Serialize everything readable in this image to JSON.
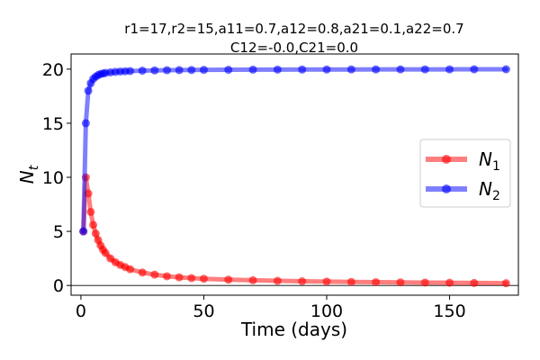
{
  "chart_data": {
    "type": "line",
    "title_line1": "r1=17,r2=15,a11=0.7,a12=0.8,a21=0.1,a22=0.7",
    "title_line2": "C12=-0.0,C21=0.0",
    "xlabel": "Time (days)",
    "ylabel": "N",
    "ylabel_sub": "t",
    "xlim": [
      -4,
      178
    ],
    "ylim": [
      -0.9,
      21.4
    ],
    "xticks": [
      0,
      50,
      100,
      150
    ],
    "yticks": [
      0,
      5,
      10,
      15,
      20
    ],
    "x": [
      1,
      2,
      3,
      4,
      5,
      6,
      7,
      8,
      9,
      10,
      12,
      14,
      16,
      18,
      20,
      25,
      30,
      35,
      40,
      45,
      50,
      60,
      70,
      80,
      90,
      100,
      110,
      120,
      130,
      140,
      150,
      160,
      173
    ],
    "legend_position": "center-right",
    "series": [
      {
        "name": "N",
        "name_sub": "1",
        "color": "#ff0000",
        "values": [
          5.0,
          10.0,
          8.5,
          6.8,
          5.6,
          4.8,
          4.2,
          3.7,
          3.3,
          3.0,
          2.5,
          2.15,
          1.9,
          1.7,
          1.5,
          1.2,
          1.0,
          0.85,
          0.75,
          0.68,
          0.62,
          0.54,
          0.48,
          0.43,
          0.39,
          0.36,
          0.33,
          0.31,
          0.29,
          0.27,
          0.25,
          0.23,
          0.21
        ]
      },
      {
        "name": "N",
        "name_sub": "2",
        "color": "#0000ff",
        "values": [
          5.0,
          15.0,
          18.0,
          18.7,
          19.1,
          19.3,
          19.45,
          19.55,
          19.6,
          19.65,
          19.7,
          19.75,
          19.78,
          19.8,
          19.82,
          19.86,
          19.88,
          19.9,
          19.91,
          19.92,
          19.93,
          19.94,
          19.95,
          19.955,
          19.96,
          19.965,
          19.97,
          19.972,
          19.975,
          19.977,
          19.98,
          19.982,
          19.985
        ]
      }
    ]
  }
}
